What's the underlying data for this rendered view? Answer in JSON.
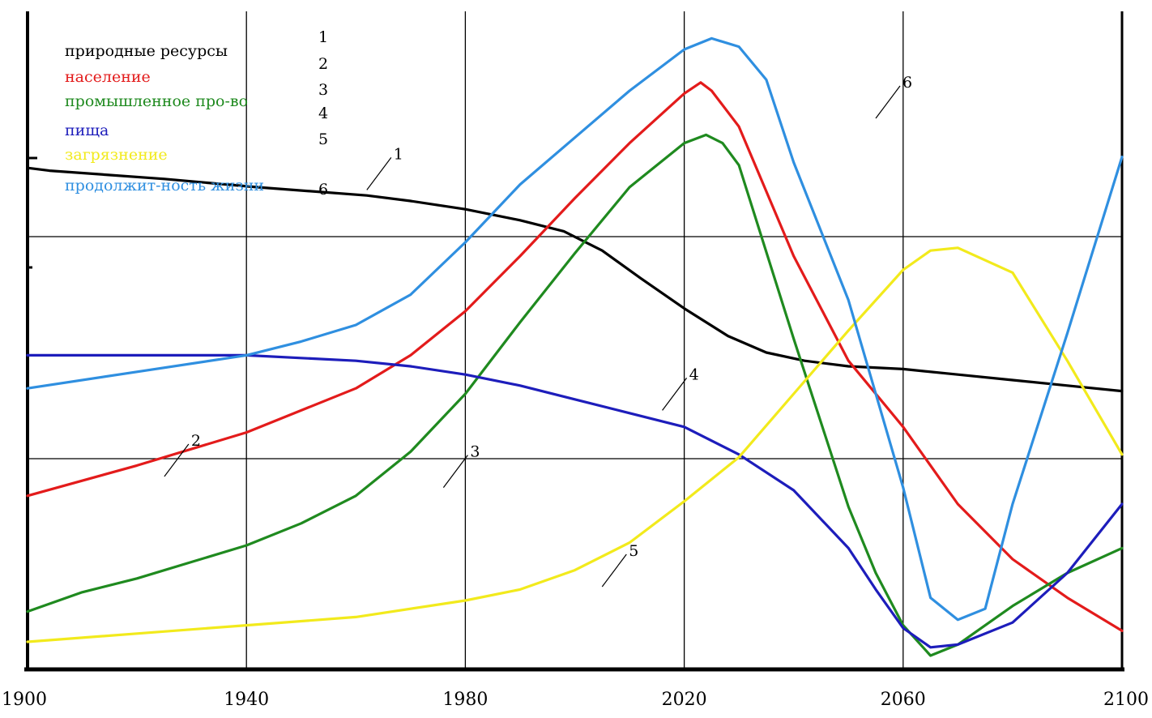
{
  "chart_data": {
    "type": "line",
    "xlim": [
      1900,
      2100
    ],
    "x_ticks": [
      "1900",
      "1940",
      "1980",
      "2020",
      "2060",
      "2100"
    ],
    "grid": true,
    "legend_placement": "top-left",
    "legend": [
      {
        "label": "природные ресурсы",
        "number": "1",
        "color": "#000000"
      },
      {
        "label": "население",
        "number": "2",
        "color": "#e31b1b"
      },
      {
        "label": "промышленное про-во",
        "number": "3",
        "color": "#1f8a1f"
      },
      {
        "label": "пища",
        "number": "4",
        "color": "#1d1dbb"
      },
      {
        "label": "загрязнение",
        "number": "5",
        "color": "#f2ea1c"
      },
      {
        "label": "продолжит-ность жизни",
        "number": "6",
        "color": "#2f8fe0"
      }
    ],
    "series": [
      {
        "number": "1",
        "color": "#000000",
        "x": [
          1900,
          1904,
          1925,
          1942,
          1962,
          1970,
          1980,
          1990,
          1998,
          2005,
          2012,
          2020,
          2028,
          2035,
          2042,
          2050,
          2060,
          2070,
          2080,
          2090,
          2100
        ],
        "y": [
          0.91,
          0.905,
          0.89,
          0.875,
          0.86,
          0.85,
          0.835,
          0.815,
          0.795,
          0.76,
          0.71,
          0.655,
          0.605,
          0.575,
          0.56,
          0.55,
          0.545,
          0.535,
          0.525,
          0.515,
          0.505
        ]
      },
      {
        "number": "2",
        "color": "#e31b1b",
        "x": [
          1900,
          1920,
          1940,
          1960,
          1970,
          1980,
          1990,
          2000,
          2010,
          2020,
          2023,
          2025,
          2030,
          2040,
          2050,
          2060,
          2070,
          2080,
          2090,
          2100
        ],
        "y": [
          0.315,
          0.37,
          0.43,
          0.51,
          0.57,
          0.65,
          0.75,
          0.855,
          0.955,
          1.045,
          1.065,
          1.05,
          0.985,
          0.75,
          0.56,
          0.44,
          0.3,
          0.2,
          0.13,
          0.07
        ]
      },
      {
        "number": "3",
        "color": "#1f8a1f",
        "x": [
          1900,
          1910,
          1920,
          1930,
          1940,
          1950,
          1960,
          1970,
          1980,
          1990,
          2000,
          2010,
          2020,
          2024,
          2027,
          2030,
          2040,
          2050,
          2055,
          2060,
          2065,
          2070,
          2080,
          2090,
          2100
        ],
        "y": [
          0.105,
          0.14,
          0.165,
          0.195,
          0.225,
          0.265,
          0.315,
          0.395,
          0.5,
          0.63,
          0.755,
          0.875,
          0.955,
          0.97,
          0.955,
          0.915,
          0.6,
          0.295,
          0.175,
          0.08,
          0.025,
          0.045,
          0.115,
          0.175,
          0.22
        ]
      },
      {
        "number": "4",
        "color": "#1d1dbb",
        "x": [
          1900,
          1910,
          1920,
          1930,
          1940,
          1950,
          1960,
          1970,
          1980,
          1990,
          2000,
          2010,
          2020,
          2030,
          2040,
          2050,
          2055,
          2060,
          2065,
          2070,
          2080,
          2090,
          2100
        ],
        "y": [
          0.57,
          0.57,
          0.57,
          0.57,
          0.57,
          0.565,
          0.56,
          0.55,
          0.535,
          0.515,
          0.49,
          0.465,
          0.44,
          0.39,
          0.325,
          0.22,
          0.145,
          0.075,
          0.04,
          0.045,
          0.085,
          0.175,
          0.3
        ]
      },
      {
        "number": "5",
        "color": "#f2ea1c",
        "x": [
          1900,
          1920,
          1940,
          1960,
          1980,
          1990,
          2000,
          2010,
          2020,
          2030,
          2040,
          2050,
          2060,
          2065,
          2070,
          2080,
          2090,
          2100
        ],
        "y": [
          0.05,
          0.065,
          0.08,
          0.095,
          0.125,
          0.145,
          0.18,
          0.23,
          0.305,
          0.385,
          0.5,
          0.615,
          0.725,
          0.76,
          0.765,
          0.72,
          0.56,
          0.39
        ]
      },
      {
        "number": "6",
        "color": "#2f8fe0",
        "x": [
          1900,
          1920,
          1940,
          1950,
          1960,
          1970,
          1980,
          1990,
          2000,
          2010,
          2020,
          2025,
          2030,
          2035,
          2040,
          2050,
          2060,
          2065,
          2070,
          2075,
          2080,
          2090,
          2100
        ],
        "y": [
          0.51,
          0.54,
          0.57,
          0.595,
          0.625,
          0.68,
          0.775,
          0.88,
          0.965,
          1.05,
          1.125,
          1.145,
          1.13,
          1.07,
          0.92,
          0.67,
          0.33,
          0.13,
          0.09,
          0.11,
          0.3,
          0.61,
          0.93
        ]
      }
    ],
    "curve_labels": [
      {
        "text": "1",
        "x": 1962,
        "y": 0.87
      },
      {
        "text": "2",
        "x": 1925,
        "y": 0.35
      },
      {
        "text": "3",
        "x": 1976,
        "y": 0.33
      },
      {
        "text": "4",
        "x": 2016,
        "y": 0.47
      },
      {
        "text": "5",
        "x": 2005,
        "y": 0.15
      },
      {
        "text": "6",
        "x": 2055,
        "y": 1.0
      }
    ]
  }
}
